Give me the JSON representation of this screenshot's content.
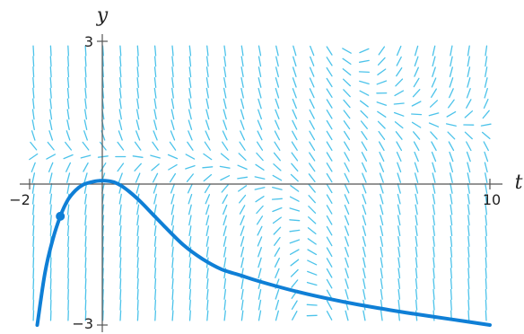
{
  "chart_data": {
    "type": "line",
    "title": "",
    "xlabel": "t",
    "ylabel": "y",
    "xlim": [
      -2,
      10
    ],
    "ylim": [
      -3,
      3
    ],
    "x_ticks": [
      {
        "value": -2,
        "label": "−2"
      },
      {
        "value": 10,
        "label": "10"
      }
    ],
    "y_ticks": [
      {
        "value": 3,
        "label": "3"
      },
      {
        "value": -3,
        "label": "−3"
      }
    ],
    "grid": false,
    "legend": "none",
    "slope_field": {
      "t_range": [
        -1.9,
        9.9
      ],
      "y_range": [
        -2.8,
        2.8
      ],
      "cols": 27,
      "rows": 26,
      "segment_length": 0.6
    },
    "series": [
      {
        "x": [
          -1.8,
          -1.6,
          -1.4,
          -1.2,
          -1.0,
          -0.8,
          -0.6,
          -0.4,
          -0.2,
          0.0,
          0.2,
          0.4,
          0.6,
          0.8,
          1.0,
          1.2,
          1.5,
          2.0,
          2.5,
          3.0,
          3.5,
          4.0,
          5.0,
          6.0,
          7.0,
          8.0,
          9.0,
          10.0
        ],
        "values": [
          -3.0,
          -1.9,
          -1.2,
          -0.7,
          -0.35,
          -0.15,
          -0.03,
          0.02,
          0.05,
          0.05,
          0.02,
          -0.06,
          -0.18,
          -0.32,
          -0.48,
          -0.65,
          -0.9,
          -1.3,
          -1.6,
          -1.82,
          -1.95,
          -2.08,
          -2.3,
          -2.48,
          -2.63,
          -2.76,
          -2.88,
          -3.0
        ]
      }
    ],
    "points": [
      {
        "x": -1.2,
        "y": -0.7
      }
    ],
    "colors": {
      "solution": "#0f7fd6",
      "slope_field": "#4cc3ea",
      "axes": "#555555"
    }
  }
}
